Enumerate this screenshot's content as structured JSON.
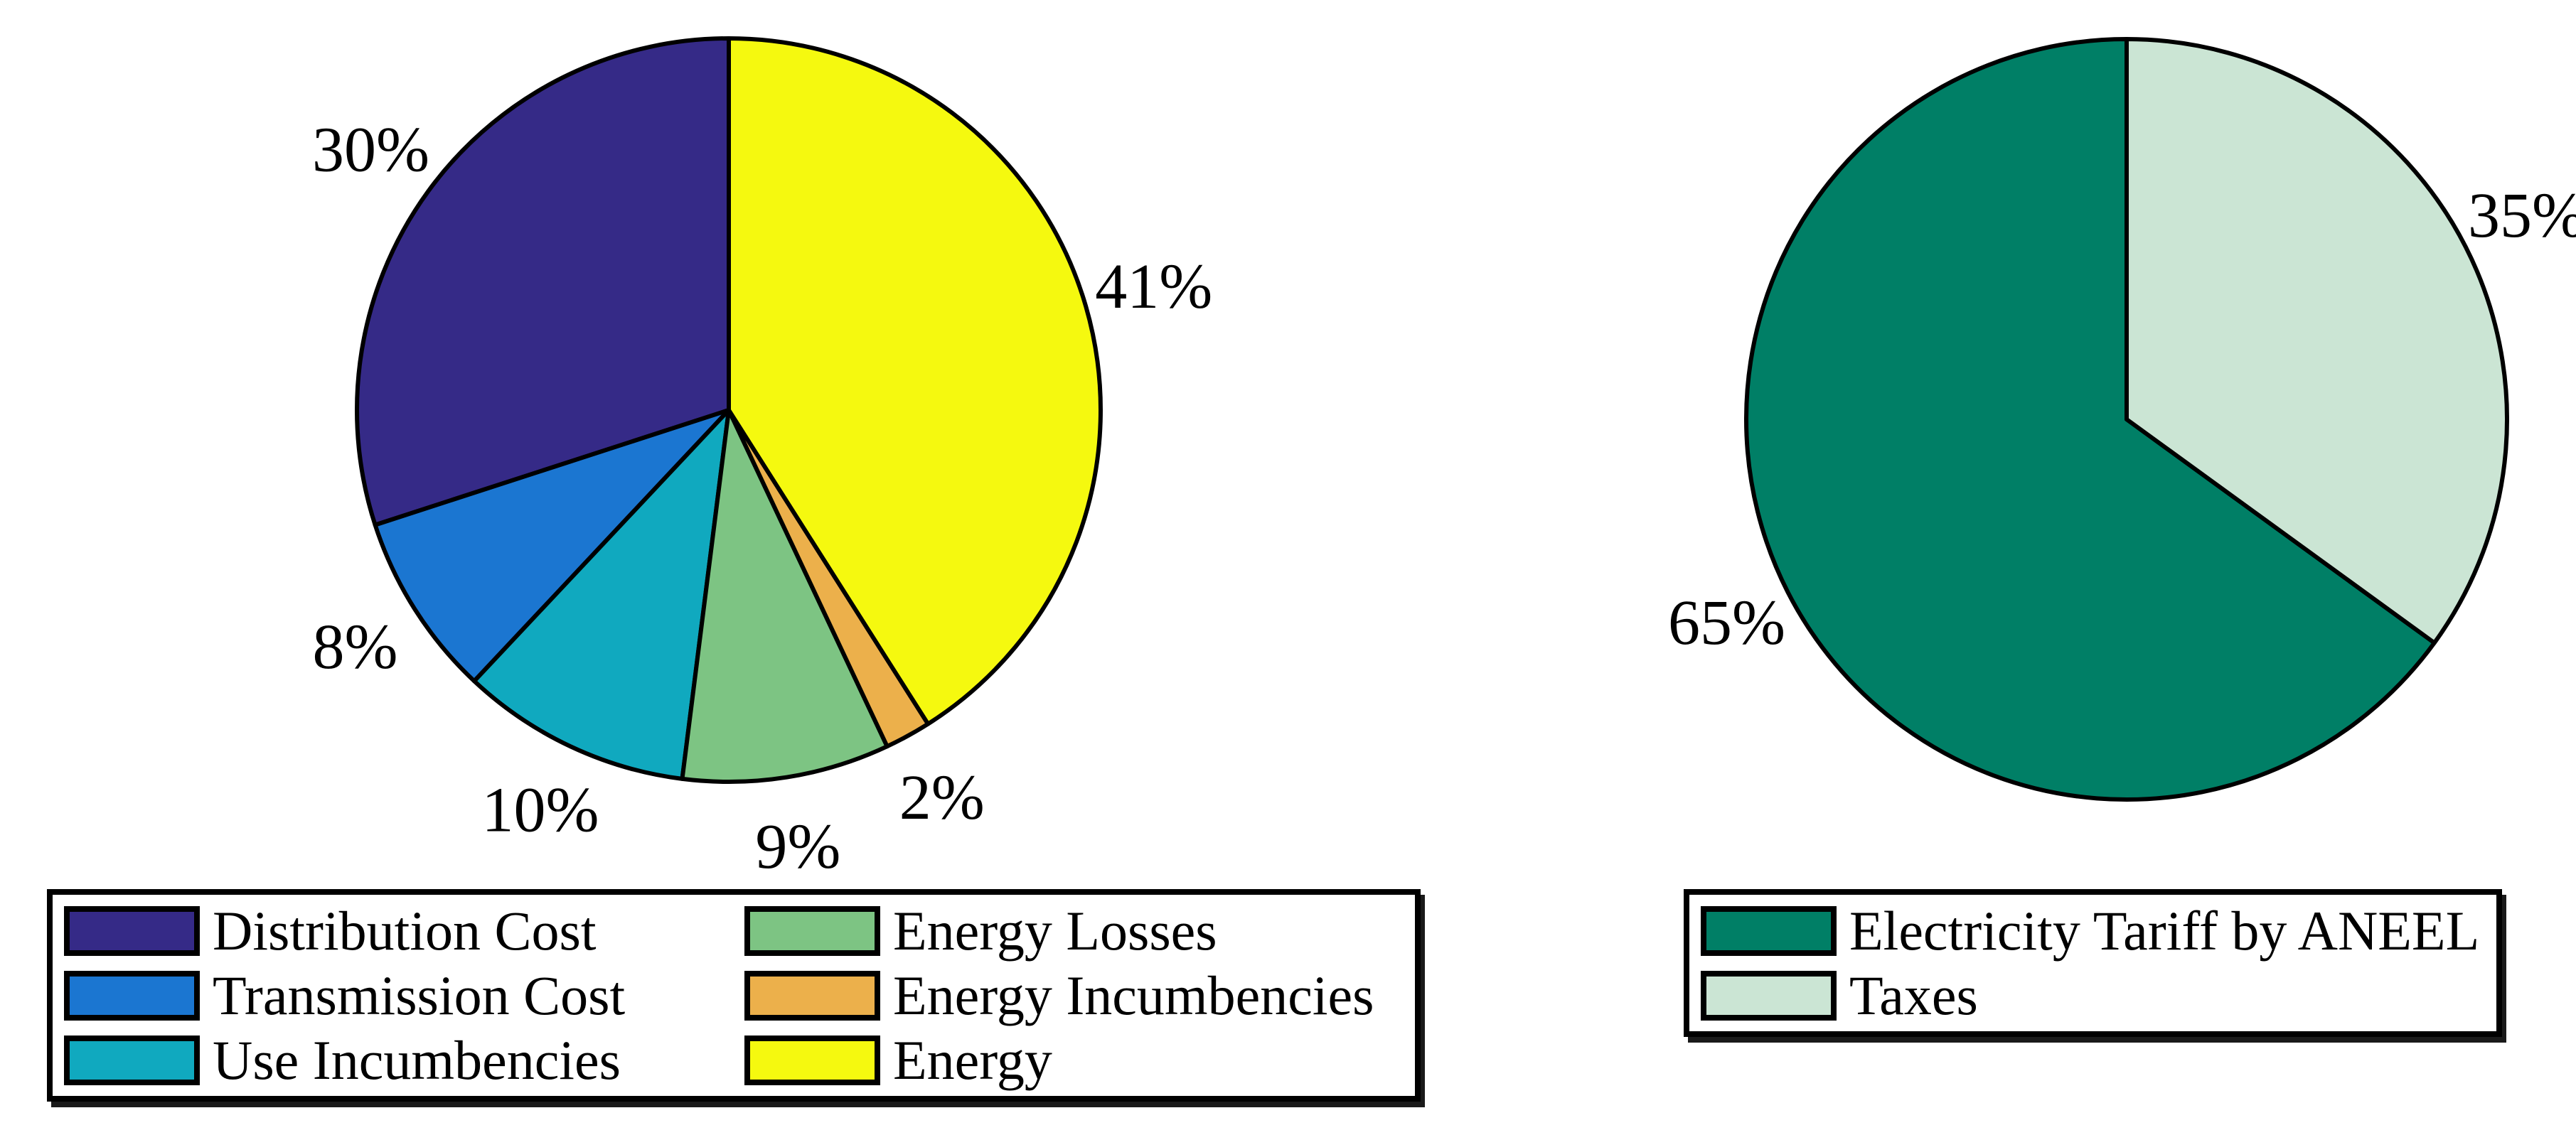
{
  "page": {
    "background": "#ffffff",
    "outline_color": "#000000"
  },
  "chart_data": [
    {
      "type": "pie",
      "title": "",
      "start_angle_deg": 90,
      "direction": "counterclockwise",
      "outline_color": "#000000",
      "legend_columns": 2,
      "legend_position": "below",
      "slices": [
        {
          "label": "Distribution Cost",
          "value": 30,
          "pct_label": "30%",
          "color": "#352A87"
        },
        {
          "label": "Transmission Cost",
          "value": 8,
          "pct_label": "8%",
          "color": "#1B76D1"
        },
        {
          "label": "Use Incumbencies",
          "value": 10,
          "pct_label": "10%",
          "color": "#10A9BF"
        },
        {
          "label": "Energy Losses",
          "value": 9,
          "pct_label": "9%",
          "color": "#7DC483"
        },
        {
          "label": "Energy Incumbencies",
          "value": 2,
          "pct_label": "2%",
          "color": "#ECB04B"
        },
        {
          "label": "Energy",
          "value": 41,
          "pct_label": "41%",
          "color": "#F5F90F"
        }
      ]
    },
    {
      "type": "pie",
      "title": "",
      "start_angle_deg": 90,
      "direction": "counterclockwise",
      "outline_color": "#000000",
      "legend_columns": 1,
      "legend_position": "below",
      "slices": [
        {
          "label": "Electricity Tariff by ANEEL",
          "value": 65,
          "pct_label": "65%",
          "color": "#007F66"
        },
        {
          "label": "Taxes",
          "value": 35,
          "pct_label": "35%",
          "color": "#CBE5D4"
        }
      ]
    }
  ]
}
